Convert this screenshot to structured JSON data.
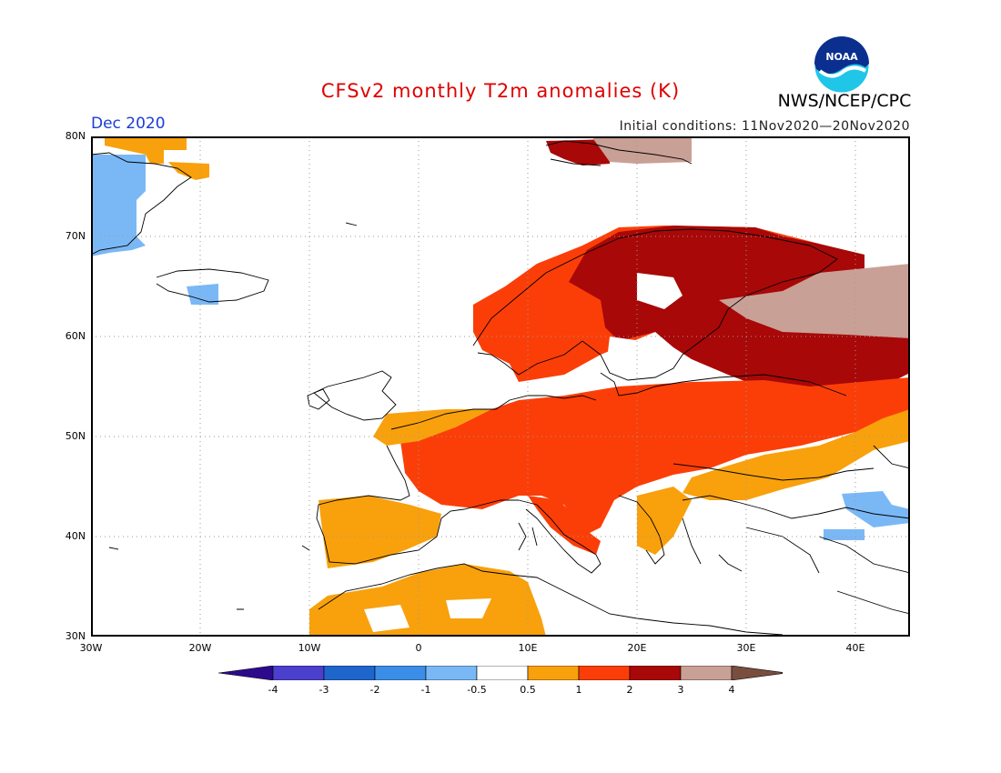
{
  "title": "CFSv2 monthly T2m anomalies (K)",
  "agency": "NWS/NCEP/CPC",
  "logo_text": "NOAA",
  "valid_month": "Dec 2020",
  "initial_conditions": "Initial conditions: 11Nov2020—20Nov2020",
  "lat_labels": [
    "80N",
    "70N",
    "60N",
    "50N",
    "40N",
    "30N"
  ],
  "lon_labels": [
    "30W",
    "20W",
    "10W",
    "0",
    "10E",
    "20E",
    "30E",
    "40E"
  ],
  "colorbar": {
    "labels": [
      "-4",
      "-3",
      "-2",
      "-1",
      "-0.5",
      "0.5",
      "1",
      "2",
      "3",
      "4"
    ],
    "colors": [
      "#2d0a8c",
      "#4b3fce",
      "#1f66cc",
      "#3b8ee8",
      "#7ab8f5",
      "#ffffff",
      "#f8a10c",
      "#fb3e08",
      "#a80808",
      "#c9a096",
      "#7a4e3e"
    ]
  }
}
